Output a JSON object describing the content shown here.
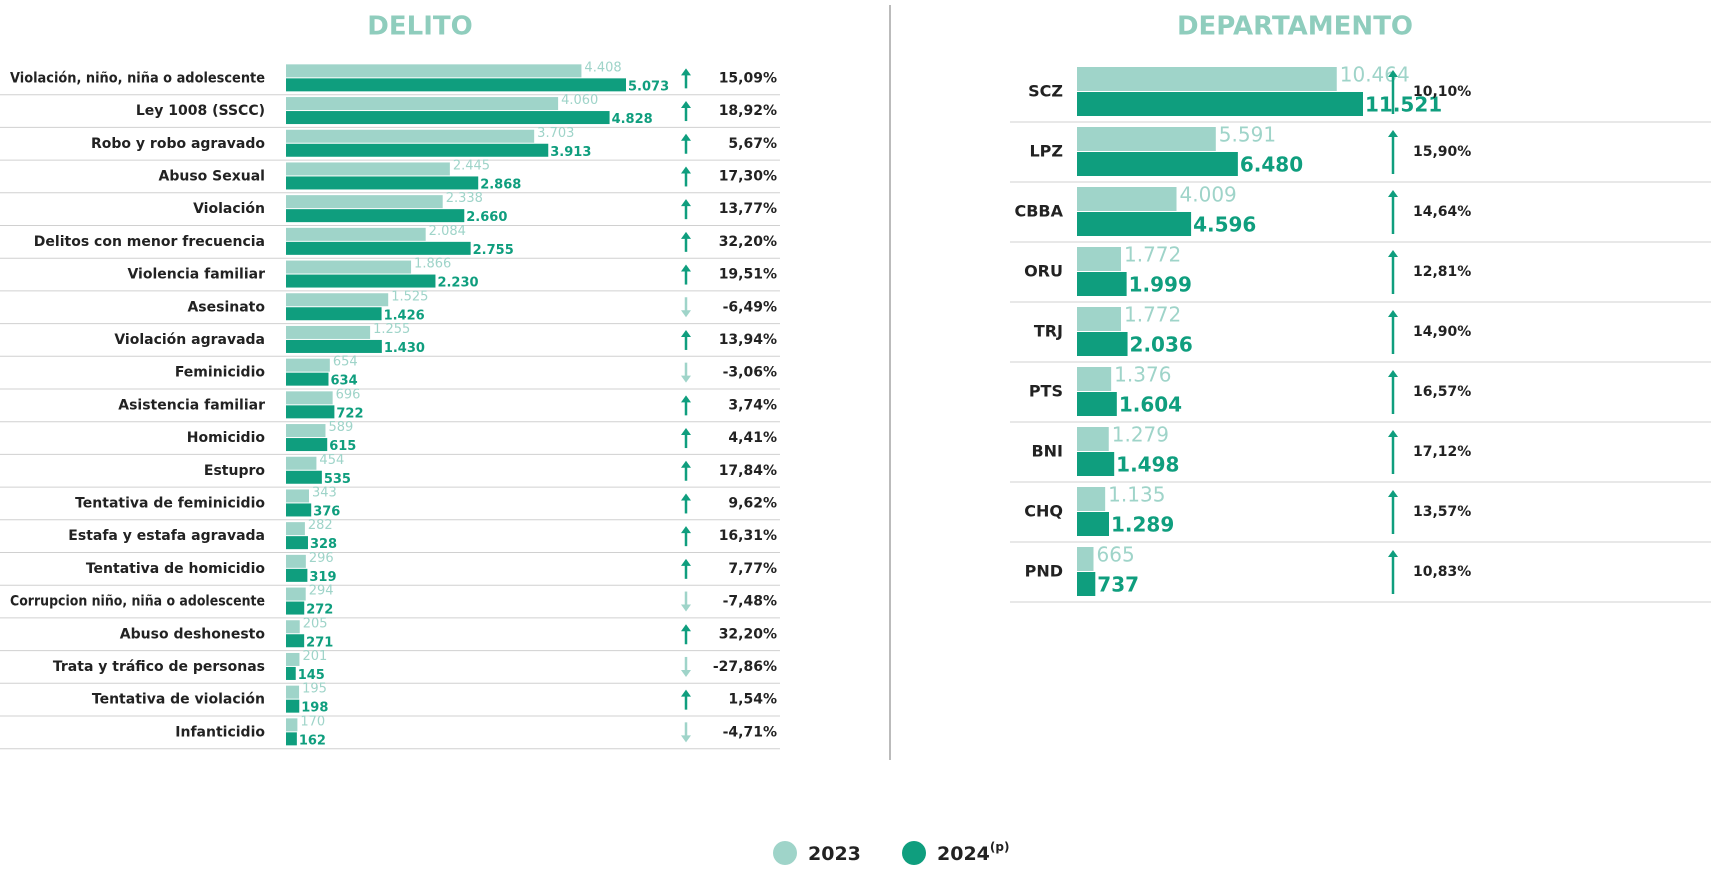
{
  "chart_data": [
    {
      "type": "hbar-grouped",
      "title": "DELITO",
      "categories": [
        "Violación, niño, niña o adolescente",
        "Ley 1008 (SSCC)",
        "Robo y robo agravado",
        "Abuso Sexual",
        "Violación",
        "Delitos con menor frecuencia",
        "Violencia familiar",
        "Asesinato",
        "Violación agravada",
        "Feminicidio",
        "Asistencia familiar",
        "Homicidio",
        "Estupro",
        "Tentativa de feminicidio",
        "Estafa y estafa agravada",
        "Tentativa de homicidio",
        "Corrupcion niño, niña o adolescente",
        "Abuso deshonesto",
        "Trata y tráfico de personas",
        "Tentativa de violación",
        "Infanticidio"
      ],
      "series": [
        {
          "name": "2023",
          "color": "#9fd4c9",
          "values": [
            4408,
            4060,
            3703,
            2445,
            2338,
            2084,
            1866,
            1525,
            1255,
            654,
            696,
            589,
            454,
            343,
            282,
            296,
            294,
            205,
            201,
            195,
            170
          ],
          "value_labels": [
            "4.408",
            "4.060",
            "3.703",
            "2.445",
            "2.338",
            "2.084",
            "1.866",
            "1.525",
            "1.255",
            "654",
            "696",
            "589",
            "454",
            "343",
            "282",
            "296",
            "294",
            "205",
            "201",
            "195",
            "170"
          ]
        },
        {
          "name": "2024",
          "name_note": "(p)",
          "color": "#0f9e7e",
          "values": [
            5073,
            4828,
            3913,
            2868,
            2660,
            2755,
            2230,
            1426,
            1430,
            634,
            722,
            615,
            535,
            376,
            328,
            319,
            272,
            271,
            145,
            198,
            162
          ],
          "value_labels": [
            "5.073",
            "4.828",
            "3.913",
            "2.868",
            "2.660",
            "2.755",
            "2.230",
            "1.426",
            "1.430",
            "634",
            "722",
            "615",
            "535",
            "376",
            "328",
            "319",
            "272",
            "271",
            "145",
            "198",
            "162"
          ]
        }
      ],
      "changes": [
        15.09,
        18.92,
        5.67,
        17.3,
        13.77,
        32.2,
        19.51,
        -6.49,
        13.94,
        -3.06,
        3.74,
        4.41,
        17.84,
        9.62,
        16.31,
        7.77,
        -7.48,
        32.2,
        -27.86,
        1.54,
        -4.71
      ],
      "change_labels": [
        "15,09%",
        "18,92%",
        "5,67%",
        "17,30%",
        "13,77%",
        "32,20%",
        "19,51%",
        "-6,49%",
        "13,94%",
        "-3,06%",
        "3,74%",
        "4,41%",
        "17,84%",
        "9,62%",
        "16,31%",
        "7,77%",
        "-7,48%",
        "32,20%",
        "-27,86%",
        "1,54%",
        "-4,71%"
      ]
    },
    {
      "type": "hbar-grouped",
      "title": "DEPARTAMENTO",
      "categories": [
        "SCZ",
        "LPZ",
        "CBBA",
        "ORU",
        "TRJ",
        "PTS",
        "BNI",
        "CHQ",
        "PND"
      ],
      "series": [
        {
          "name": "2023",
          "color": "#9fd4c9",
          "values": [
            10464,
            5591,
            4009,
            1772,
            1772,
            1376,
            1279,
            1135,
            665
          ],
          "value_labels": [
            "10.464",
            "5.591",
            "4.009",
            "1.772",
            "1.772",
            "1.376",
            "1.279",
            "1.135",
            "665"
          ]
        },
        {
          "name": "2024",
          "color": "#0f9e7e",
          "values": [
            11521,
            6480,
            4596,
            1999,
            2036,
            1604,
            1498,
            1289,
            737
          ],
          "value_labels": [
            "11.521",
            "6.480",
            "4.596",
            "1.999",
            "2.036",
            "1.604",
            "1.498",
            "1.289",
            "737"
          ]
        }
      ],
      "changes": [
        10.1,
        15.9,
        14.64,
        12.81,
        14.9,
        16.57,
        17.12,
        13.57,
        10.83
      ],
      "change_labels": [
        "10,10%",
        "15,90%",
        "14,64%",
        "12,81%",
        "14,90%",
        "16,57%",
        "17,12%",
        "13,57%",
        "10,83%"
      ]
    }
  ]
}
